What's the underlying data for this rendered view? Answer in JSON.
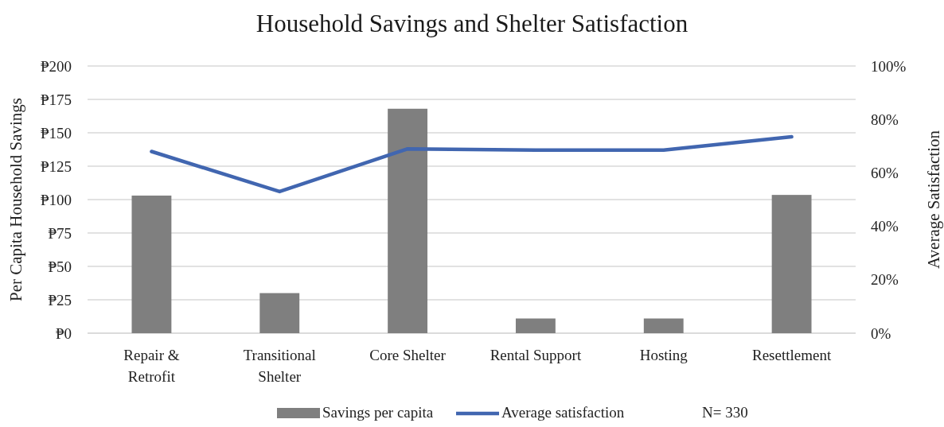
{
  "chart_data": {
    "type": "bar",
    "title": "Household Savings and Shelter Satisfaction",
    "ylabel": "Per Capita Household Savings",
    "y2label": "Average Satisfaction",
    "categories": [
      "Repair & Retrofit",
      "Transitional Shelter",
      "Core Shelter",
      "Rental Support",
      "Hosting",
      "Resettlement"
    ],
    "series": [
      {
        "name": "Savings per capita",
        "color": "#7f7f7f",
        "values": [
          103,
          30,
          168,
          11,
          11,
          103.5
        ]
      },
      {
        "name": "Average satisfaction",
        "type": "line",
        "axis": "y2",
        "color": "#4166b0",
        "values": [
          68,
          53,
          69,
          68.5,
          68.5,
          73.5
        ]
      }
    ],
    "ylim": [
      0,
      200
    ],
    "yticks": [
      {
        "value": 0,
        "label": "₱0"
      },
      {
        "value": 25,
        "label": "₱25"
      },
      {
        "value": 50,
        "label": "₱50"
      },
      {
        "value": 75,
        "label": "₱75"
      },
      {
        "value": 100,
        "label": "₱100"
      },
      {
        "value": 125,
        "label": "₱125"
      },
      {
        "value": 150,
        "label": "₱150"
      },
      {
        "value": 175,
        "label": "₱175"
      },
      {
        "value": 200,
        "label": "₱200"
      }
    ],
    "y2lim": [
      0,
      100
    ],
    "y2ticks": [
      {
        "value": 0,
        "label": "0%"
      },
      {
        "value": 20,
        "label": "20%"
      },
      {
        "value": 40,
        "label": "40%"
      },
      {
        "value": 60,
        "label": "60%"
      },
      {
        "value": 80,
        "label": "80%"
      },
      {
        "value": 100,
        "label": "100%"
      }
    ],
    "grid": "y",
    "legend": "bottom",
    "marker": "none",
    "annotations": [
      "N= 330"
    ]
  }
}
